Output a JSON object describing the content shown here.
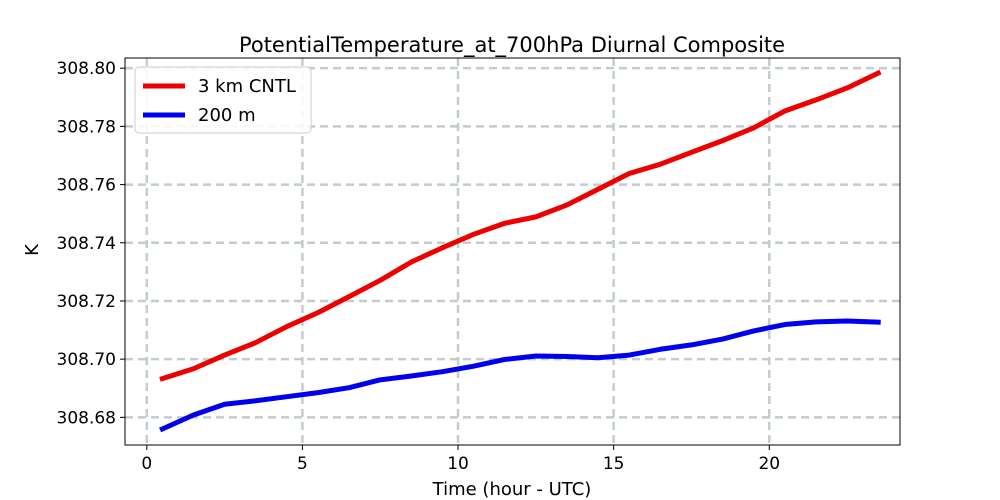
{
  "chart_data": {
    "type": "line",
    "title": "PotentialTemperature_at_700hPa Diurnal Composite",
    "xlabel": "Time (hour - UTC)",
    "ylabel": "K",
    "xlim": [
      -0.7,
      24.2
    ],
    "ylim": [
      308.6705,
      308.8035
    ],
    "xticks": [
      0,
      5,
      10,
      15,
      20
    ],
    "xtick_labels": [
      "0",
      "5",
      "10",
      "15",
      "20"
    ],
    "yticks": [
      308.68,
      308.7,
      308.72,
      308.74,
      308.76,
      308.78,
      308.8
    ],
    "ytick_labels": [
      "308.68",
      "308.70",
      "308.72",
      "308.74",
      "308.76",
      "308.78",
      "308.80"
    ],
    "grid": true,
    "legend_position": "top-left",
    "x": [
      0.5,
      1.5,
      2.5,
      3.5,
      4.5,
      5.5,
      6.5,
      7.5,
      8.5,
      9.5,
      10.5,
      11.5,
      12.5,
      13.5,
      14.5,
      15.5,
      16.5,
      17.5,
      18.5,
      19.5,
      20.5,
      21.5,
      22.5,
      23.5
    ],
    "series": [
      {
        "name": "3 km CNTL",
        "color": "#ee0000",
        "values": [
          308.6933,
          308.6967,
          308.7014,
          308.7057,
          308.7112,
          308.716,
          308.7215,
          308.7271,
          308.7334,
          308.7383,
          308.7429,
          308.7467,
          308.7489,
          308.753,
          308.7584,
          308.7638,
          308.767,
          308.7711,
          308.7751,
          308.7795,
          308.7853,
          308.7891,
          308.7932,
          308.7983
        ]
      },
      {
        "name": "200 m",
        "color": "#0000ee",
        "values": [
          308.676,
          308.6808,
          308.6845,
          308.6857,
          308.6871,
          308.6885,
          308.6902,
          308.6929,
          308.6942,
          308.6957,
          308.6976,
          308.6999,
          308.7011,
          308.7009,
          308.7005,
          308.7014,
          308.7034,
          308.7049,
          308.7069,
          308.7097,
          308.7119,
          308.7128,
          308.7131,
          308.7127
        ]
      }
    ]
  }
}
